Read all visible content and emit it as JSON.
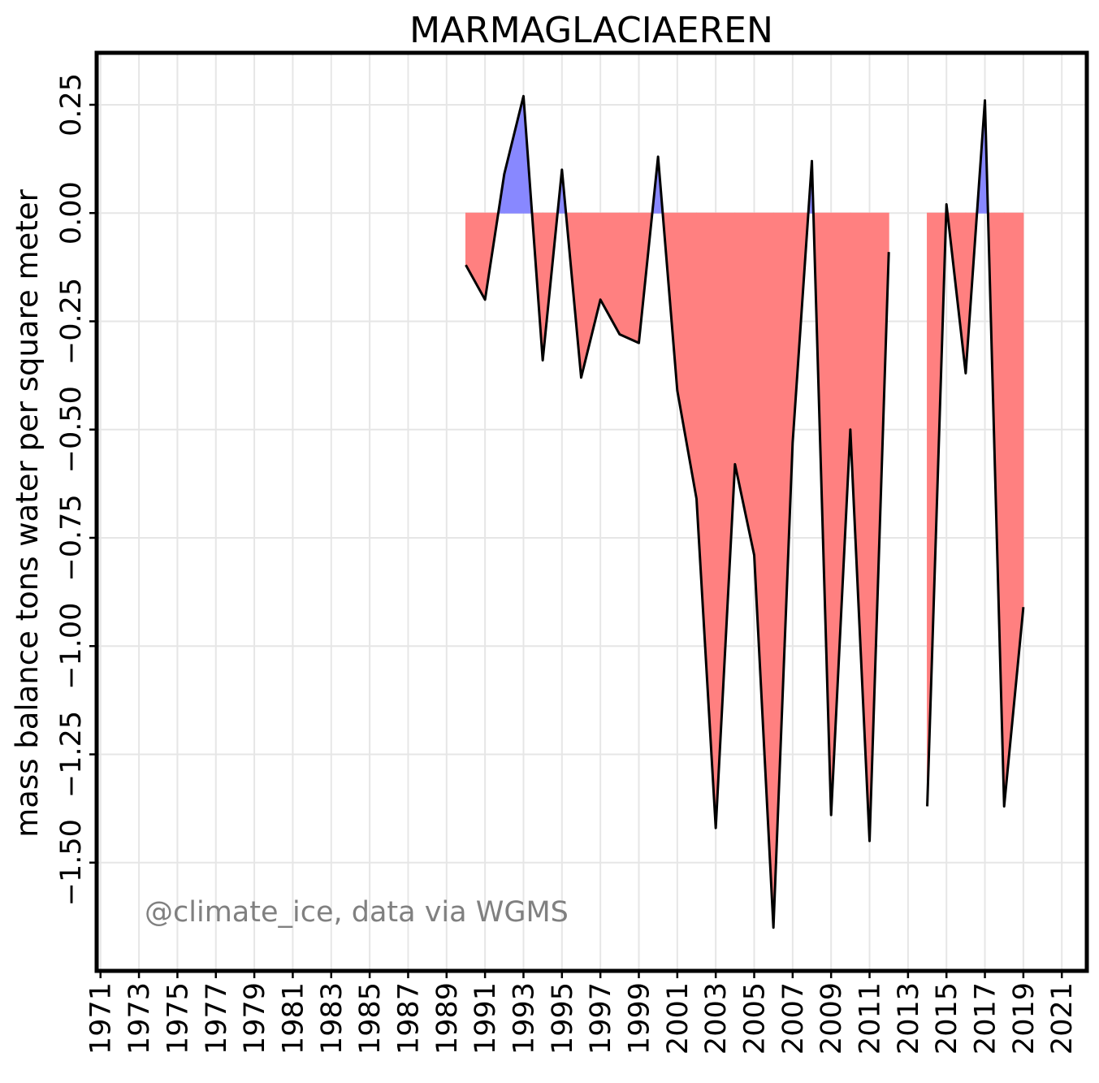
{
  "chart_data": {
    "type": "area",
    "title": "MARMAGLACIAEREN",
    "xlabel": "",
    "ylabel": "mass balance tons water per square meter",
    "watermark": "@climate_ice, data via WGMS",
    "xlim": [
      1970.8,
      2022.3
    ],
    "ylim": [
      -1.75,
      0.37
    ],
    "x_ticks": [
      1971,
      1973,
      1975,
      1977,
      1979,
      1981,
      1983,
      1985,
      1987,
      1989,
      1991,
      1993,
      1995,
      1997,
      1999,
      2001,
      2003,
      2005,
      2007,
      2009,
      2011,
      2013,
      2015,
      2017,
      2019,
      2021
    ],
    "y_ticks": [
      -1.5,
      -1.25,
      -1.0,
      -0.75,
      -0.5,
      -0.25,
      0.0,
      0.25
    ],
    "y_tick_labels": [
      "−1.50",
      "−1.25",
      "−1.00",
      "−0.75",
      "−0.50",
      "−0.25",
      "0.00",
      "0.25"
    ],
    "grid": true,
    "colors": {
      "positive": "#8888ff",
      "negative": "#ff8080",
      "line": "#000000",
      "grid": "#e6e6e6",
      "watermark": "#808080"
    },
    "series": [
      {
        "x": [
          1990,
          1991,
          1992,
          1993,
          1994,
          1995,
          1996,
          1997,
          1998,
          1999,
          2000,
          2001,
          2002,
          2003,
          2004,
          2005,
          2006,
          2007,
          2008,
          2009,
          2010,
          2011,
          2012,
          2013,
          2014,
          2015,
          2016,
          2017,
          2018,
          2019
        ],
        "values": [
          -0.12,
          -0.2,
          0.09,
          0.27,
          -0.34,
          0.1,
          -0.38,
          -0.2,
          -0.28,
          -0.3,
          0.13,
          -0.41,
          -0.66,
          -1.42,
          -0.58,
          -0.79,
          -1.65,
          -0.53,
          0.12,
          -1.39,
          -0.5,
          -1.45,
          -0.09,
          null,
          -1.37,
          0.02,
          -0.37,
          0.26,
          -1.37,
          -0.91
        ]
      }
    ]
  }
}
